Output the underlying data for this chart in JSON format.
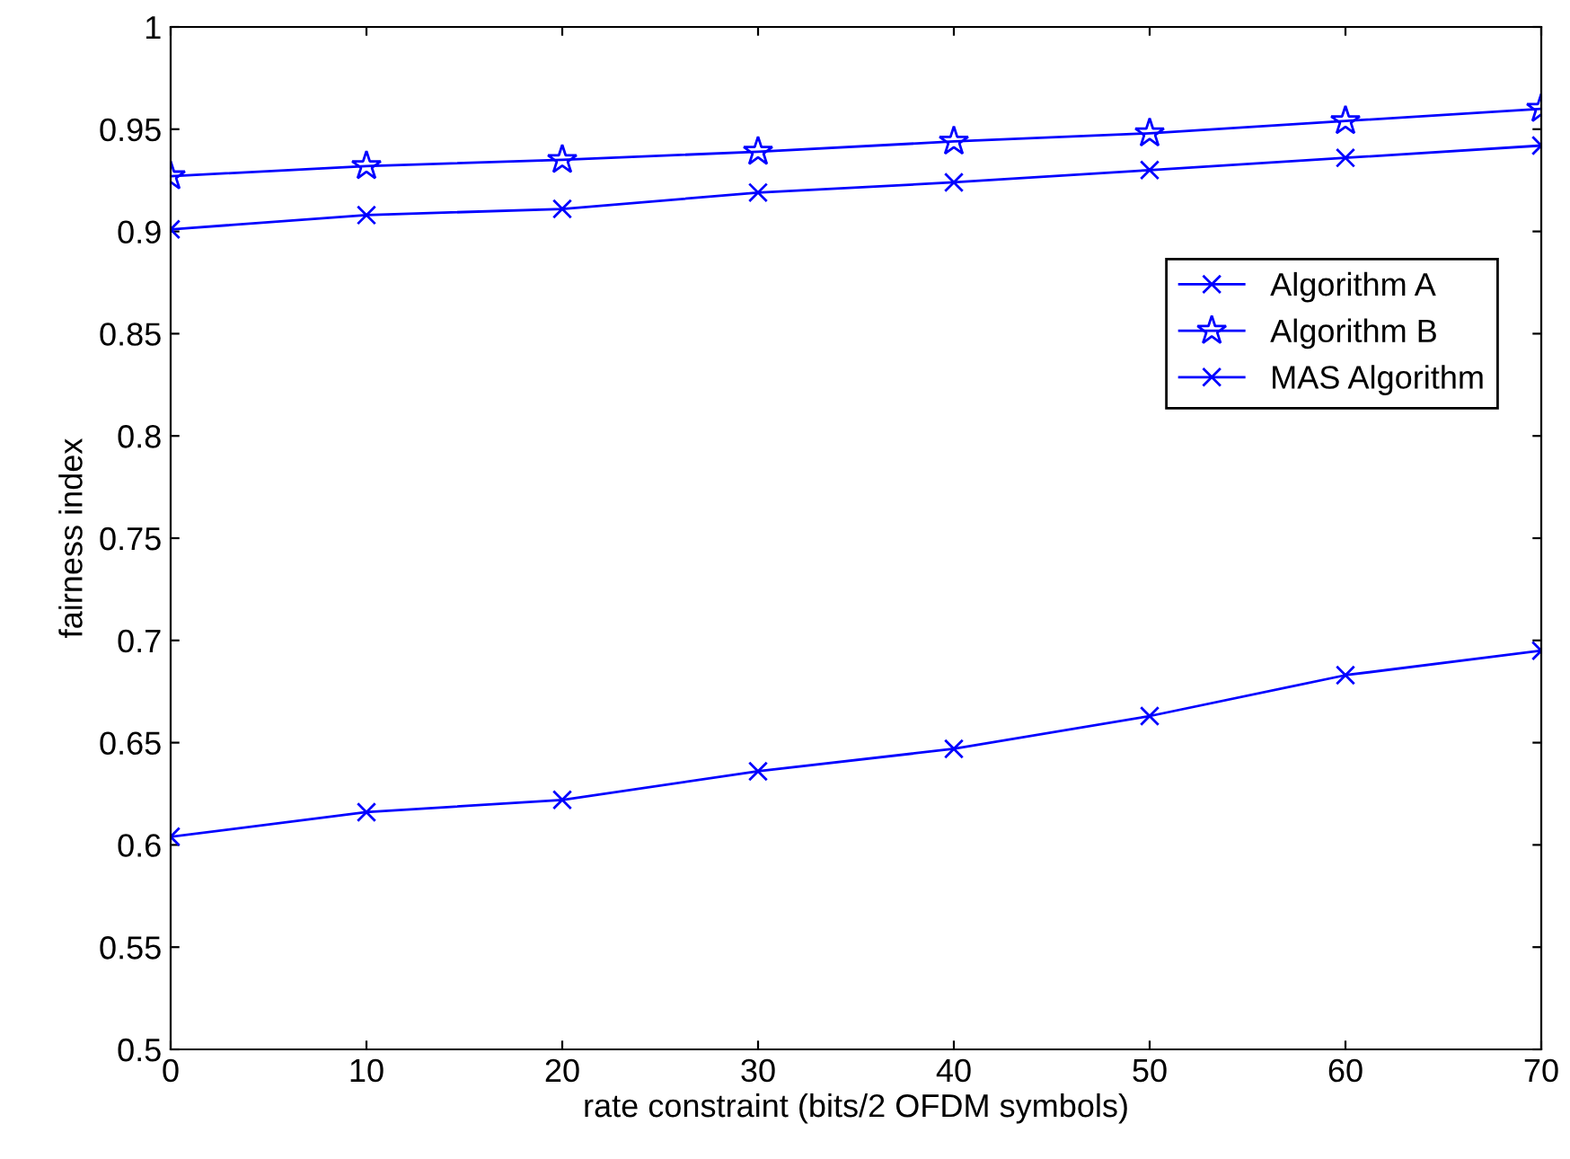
{
  "chart_data": {
    "type": "line",
    "xlabel": "rate constraint (bits/2 OFDM symbols)",
    "ylabel": "fairness index",
    "x": [
      0,
      10,
      20,
      30,
      40,
      50,
      60,
      70
    ],
    "series": [
      {
        "name": "Algorithm A",
        "color": "#0000ff",
        "marker": "cross",
        "values": [
          0.901,
          0.908,
          0.911,
          0.919,
          0.924,
          0.93,
          0.936,
          0.942
        ]
      },
      {
        "name": "Algorithm B",
        "color": "#0000ff",
        "marker": "star",
        "values": [
          0.927,
          0.932,
          0.935,
          0.939,
          0.944,
          0.948,
          0.954,
          0.96
        ]
      },
      {
        "name": "MAS Algorithm",
        "color": "#0000ff",
        "marker": "cross",
        "values": [
          0.604,
          0.616,
          0.622,
          0.636,
          0.647,
          0.663,
          0.683,
          0.695
        ]
      }
    ],
    "xlim": [
      0,
      70
    ],
    "xticks": [
      0,
      10,
      20,
      30,
      40,
      50,
      60,
      70
    ],
    "ylim": [
      0.5,
      1
    ],
    "yticks": [
      0.5,
      0.55,
      0.6,
      0.65,
      0.7,
      0.75,
      0.8,
      0.85,
      0.9,
      0.95,
      1
    ],
    "grid": false,
    "legend": "right",
    "line_style": "solid"
  }
}
